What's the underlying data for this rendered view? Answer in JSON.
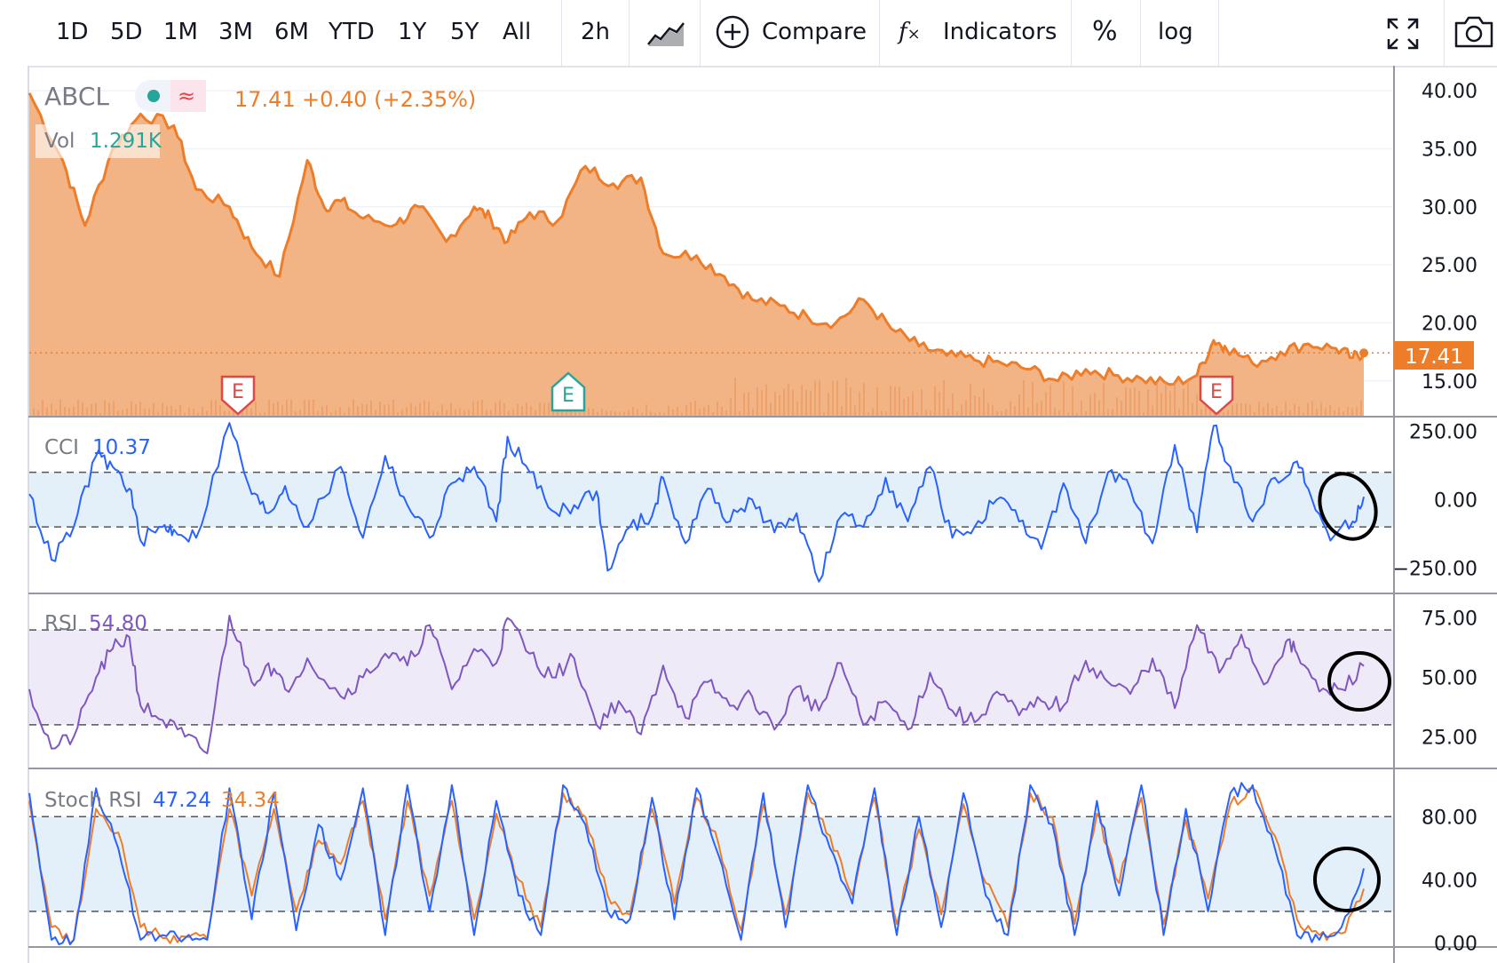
{
  "toolbar": {
    "ranges": [
      "1D",
      "5D",
      "1M",
      "3M",
      "6M",
      "YTD",
      "1Y",
      "5Y",
      "All"
    ],
    "interval": "2h",
    "compare_label": "Compare",
    "indicators_label": "Indicators",
    "percent_label": "%",
    "log_label": "log"
  },
  "legend": {
    "symbol": "ABCL",
    "price": "17.41",
    "change": "+0.40 (+2.35%)",
    "vol_label": "Vol",
    "vol_value": "1.291K",
    "cci_label": "CCI",
    "cci_value": "10.37",
    "rsi_label": "RSI",
    "rsi_value": "54.80",
    "stoch_label": "Stoch RSI",
    "stoch_k_value": "47.24",
    "stoch_d_value": "34.34",
    "price_badge": "17.41",
    "earnings_marker": "E"
  },
  "colors": {
    "price_line": "#ee7d2a",
    "price_fill": "#f2b07e",
    "cci_line": "#2962ff",
    "cci_band": "#e3f0fa",
    "rsi_line": "#7e57c2",
    "rsi_band": "#efeaf7",
    "stoch_k": "#2962ff",
    "stoch_d": "#ee7d2a",
    "stoch_band": "#e3f0fa",
    "earnings_red": "#e04848",
    "earnings_teal": "#26a69a",
    "legend_value_green": "#26a69a"
  },
  "chart_data": [
    {
      "type": "area",
      "title": "ABCL",
      "ylim": [
        12,
        42
      ],
      "y_ticks": [
        "40.00",
        "35.00",
        "30.00",
        "25.00",
        "20.00",
        "15.00"
      ],
      "y_tick_values": [
        40,
        35,
        30,
        25,
        20,
        15
      ],
      "last_value": 17.41,
      "x_end": 240,
      "series": [
        {
          "name": "ABCL",
          "x": [
            0,
            6,
            10,
            15,
            20,
            26,
            30,
            36,
            40,
            45,
            50,
            53,
            56,
            60,
            66,
            70,
            75,
            80,
            83,
            86,
            90,
            95,
            100,
            105,
            110,
            114,
            120,
            125,
            130,
            135,
            140,
            145,
            150,
            155,
            160,
            165,
            170,
            175,
            180,
            185,
            190,
            195,
            200,
            205,
            210,
            213,
            215,
            220,
            225,
            230,
            235,
            238,
            240
          ],
          "values": [
            39.8,
            34,
            28.4,
            35,
            38,
            37,
            31.5,
            30,
            26.5,
            24,
            34,
            30,
            30.5,
            29,
            28.5,
            30,
            27,
            30,
            29,
            27,
            29.5,
            28.8,
            33.5,
            32,
            32.5,
            26,
            25.8,
            24,
            22,
            21.5,
            20.5,
            20,
            22,
            19.5,
            18,
            17.2,
            16.8,
            16.5,
            16,
            15,
            16,
            15.5,
            15.2,
            14.7,
            15.5,
            18.5,
            18,
            16.5,
            17.5,
            18.2,
            17.8,
            17,
            17.41
          ]
        }
      ]
    },
    {
      "type": "line",
      "title": "CCI",
      "ylim": [
        -340,
        300
      ],
      "y_ticks": [
        "250.00",
        "0.00",
        "−250.00"
      ],
      "y_tick_values": [
        250,
        0,
        -250
      ],
      "bands": [
        100,
        -100
      ],
      "x_end": 240,
      "series": [
        {
          "name": "CCI",
          "x": [
            0,
            4,
            8,
            12,
            15,
            18,
            20,
            24,
            26,
            30,
            36,
            40,
            43,
            46,
            50,
            56,
            60,
            64,
            68,
            72,
            76,
            80,
            84,
            86,
            90,
            94,
            98,
            102,
            104,
            108,
            112,
            114,
            118,
            122,
            126,
            130,
            134,
            138,
            142,
            146,
            150,
            154,
            158,
            162,
            166,
            170,
            174,
            178,
            182,
            186,
            190,
            194,
            198,
            202,
            206,
            210,
            213,
            216,
            220,
            224,
            228,
            230,
            234,
            238,
            240
          ],
          "values": [
            20,
            -220,
            -100,
            160,
            120,
            40,
            -150,
            -100,
            -110,
            -140,
            280,
            20,
            -50,
            50,
            -100,
            120,
            -140,
            160,
            -20,
            -140,
            60,
            120,
            -80,
            230,
            100,
            -40,
            -20,
            30,
            -260,
            -100,
            -60,
            80,
            -160,
            40,
            -80,
            0,
            -120,
            -50,
            -300,
            -60,
            -100,
            80,
            -80,
            120,
            -140,
            -100,
            0,
            -80,
            -180,
            60,
            -160,
            100,
            40,
            -160,
            200,
            -120,
            270,
            120,
            -80,
            80,
            140,
            40,
            -150,
            -80,
            10.37
          ]
        }
      ]
    },
    {
      "type": "line",
      "title": "RSI",
      "ylim": [
        12,
        85
      ],
      "y_ticks": [
        "75.00",
        "50.00",
        "25.00"
      ],
      "y_tick_values": [
        75,
        50,
        25
      ],
      "bands": [
        70,
        30
      ],
      "x_end": 240,
      "series": [
        {
          "name": "RSI",
          "x": [
            0,
            4,
            8,
            12,
            15,
            18,
            20,
            24,
            28,
            32,
            36,
            40,
            43,
            46,
            50,
            56,
            60,
            64,
            68,
            72,
            76,
            80,
            84,
            86,
            90,
            94,
            98,
            102,
            106,
            110,
            114,
            118,
            122,
            126,
            130,
            134,
            138,
            142,
            146,
            150,
            154,
            158,
            162,
            166,
            170,
            174,
            178,
            182,
            186,
            190,
            194,
            198,
            202,
            206,
            210,
            214,
            218,
            222,
            226,
            228,
            232,
            236,
            240
          ],
          "values": [
            45,
            20,
            25,
            50,
            62,
            67,
            38,
            32,
            25,
            18,
            76,
            48,
            56,
            45,
            58,
            42,
            50,
            60,
            55,
            72,
            45,
            62,
            56,
            75,
            60,
            50,
            58,
            30,
            40,
            26,
            55,
            33,
            48,
            38,
            42,
            28,
            46,
            36,
            56,
            30,
            40,
            28,
            52,
            36,
            31,
            44,
            34,
            40,
            38,
            57,
            48,
            43,
            58,
            37,
            72,
            52,
            68,
            47,
            65,
            60,
            44,
            45,
            54.8
          ]
        }
      ]
    },
    {
      "type": "line",
      "title": "Stoch RSI",
      "ylim": [
        -2,
        110
      ],
      "y_ticks": [
        "80.00",
        "40.00",
        "0.00"
      ],
      "y_tick_values": [
        80,
        40,
        0
      ],
      "bands": [
        80,
        20
      ],
      "x_end": 240,
      "series": [
        {
          "name": "K",
          "x": [
            0,
            4,
            8,
            12,
            16,
            20,
            24,
            28,
            32,
            36,
            40,
            44,
            48,
            52,
            56,
            60,
            64,
            68,
            72,
            76,
            80,
            84,
            88,
            92,
            96,
            100,
            104,
            108,
            112,
            116,
            120,
            124,
            128,
            132,
            136,
            140,
            144,
            148,
            152,
            156,
            160,
            164,
            168,
            172,
            176,
            180,
            184,
            188,
            192,
            196,
            200,
            204,
            208,
            212,
            216,
            220,
            224,
            228,
            232,
            236,
            240
          ],
          "values": [
            95,
            2,
            2,
            98,
            60,
            2,
            5,
            3,
            2,
            98,
            15,
            95,
            8,
            75,
            40,
            98,
            5,
            100,
            20,
            100,
            5,
            90,
            30,
            5,
            100,
            75,
            20,
            15,
            92,
            15,
            98,
            55,
            2,
            95,
            10,
            100,
            60,
            25,
            98,
            5,
            80,
            10,
            95,
            30,
            5,
            100,
            75,
            5,
            90,
            30,
            100,
            5,
            85,
            20,
            95,
            100,
            60,
            5,
            2,
            10,
            47.24
          ]
        },
        {
          "name": "D",
          "x": [
            0,
            4,
            8,
            12,
            16,
            20,
            24,
            28,
            32,
            36,
            40,
            44,
            48,
            52,
            56,
            60,
            64,
            68,
            72,
            76,
            80,
            84,
            88,
            92,
            96,
            100,
            104,
            108,
            112,
            116,
            120,
            124,
            128,
            132,
            136,
            140,
            144,
            148,
            152,
            156,
            160,
            164,
            168,
            172,
            176,
            180,
            184,
            188,
            192,
            196,
            200,
            204,
            208,
            212,
            216,
            220,
            224,
            228,
            232,
            236,
            240
          ],
          "values": [
            90,
            10,
            2,
            85,
            70,
            10,
            3,
            4,
            3,
            85,
            30,
            85,
            20,
            65,
            50,
            90,
            15,
            90,
            30,
            90,
            15,
            82,
            40,
            10,
            95,
            80,
            30,
            18,
            85,
            25,
            92,
            62,
            8,
            88,
            18,
            95,
            68,
            30,
            92,
            12,
            72,
            18,
            88,
            38,
            10,
            95,
            80,
            12,
            82,
            38,
            92,
            12,
            78,
            28,
            88,
            98,
            68,
            15,
            5,
            6,
            34.34
          ]
        }
      ]
    }
  ]
}
